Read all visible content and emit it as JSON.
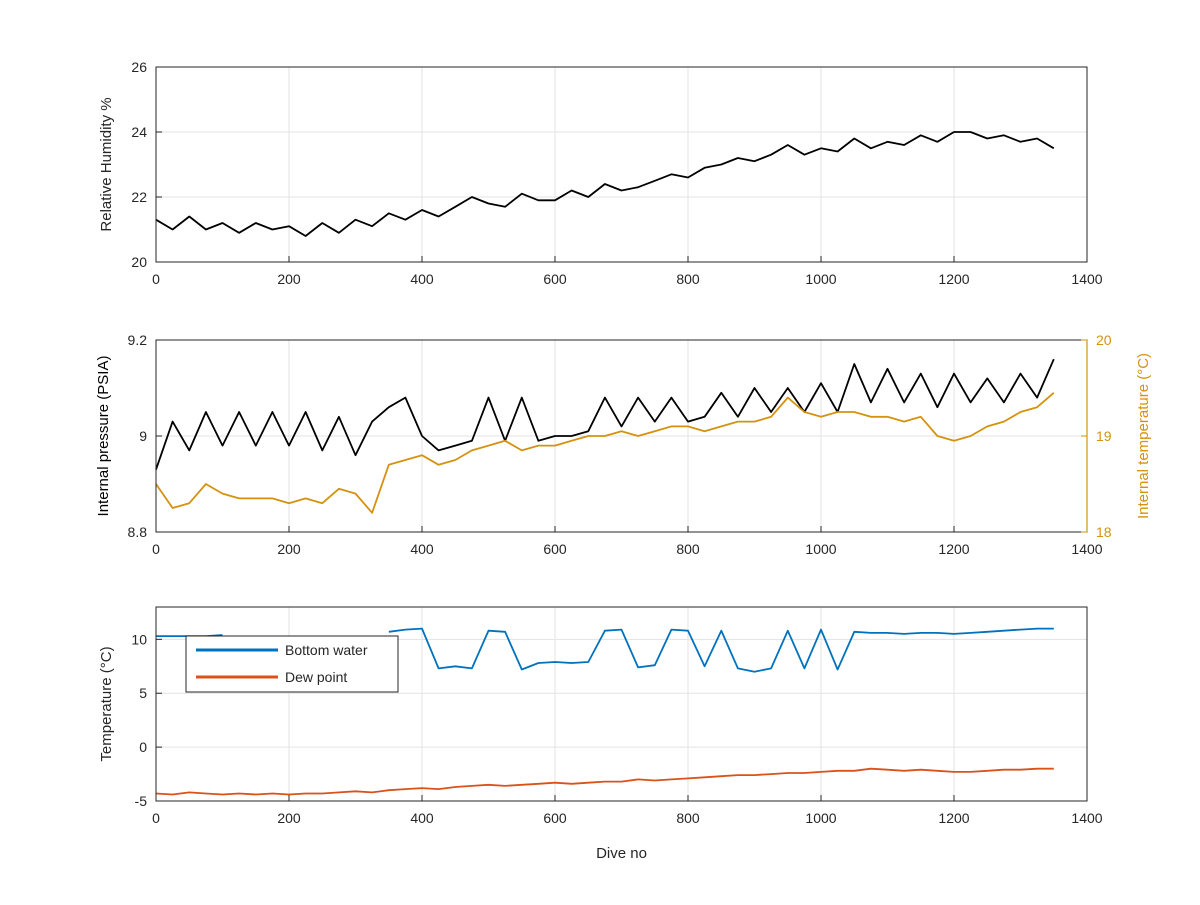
{
  "chart_data": [
    {
      "type": "line",
      "xlabel": "",
      "ylabel": "Relative Humidity %",
      "xlim": [
        0,
        1400
      ],
      "ylim": [
        20,
        26
      ],
      "xticks": [
        0,
        200,
        400,
        600,
        800,
        1000,
        1200,
        1400
      ],
      "yticks": [
        20,
        22,
        24,
        26
      ],
      "grid": true,
      "x_start": 0,
      "x_step": 25,
      "series": [
        {
          "name": "Relative Humidity",
          "axis": "left",
          "color": "#000000",
          "values": [
            21.3,
            21.0,
            21.4,
            21.0,
            21.2,
            20.9,
            21.2,
            21.0,
            21.1,
            20.8,
            21.2,
            20.9,
            21.3,
            21.1,
            21.5,
            21.3,
            21.6,
            21.4,
            21.7,
            22.0,
            21.8,
            21.7,
            22.1,
            21.9,
            21.9,
            22.2,
            22.0,
            22.4,
            22.2,
            22.3,
            22.5,
            22.7,
            22.6,
            22.9,
            23.0,
            23.2,
            23.1,
            23.3,
            23.6,
            23.3,
            23.5,
            23.4,
            23.8,
            23.5,
            23.7,
            23.6,
            23.9,
            23.7,
            24.0,
            24.0,
            23.8,
            23.9,
            23.7,
            23.8,
            23.5
          ]
        }
      ]
    },
    {
      "type": "line",
      "xlabel": "",
      "ylabel": "Internal pressure (PSIA)",
      "ylabel_right": "Internal temperature (°C)",
      "xlim": [
        0,
        1400
      ],
      "ylim": [
        8.8,
        9.2
      ],
      "ylim_right": [
        18,
        20
      ],
      "xticks": [
        0,
        200,
        400,
        600,
        800,
        1000,
        1200,
        1400
      ],
      "yticks": [
        8.8,
        9,
        9.2
      ],
      "yticks_right": [
        18,
        19,
        20
      ],
      "grid": true,
      "x_start": 0,
      "x_step": 25,
      "series": [
        {
          "name": "Internal pressure",
          "axis": "left",
          "color": "#000000",
          "values": [
            8.93,
            9.03,
            8.97,
            9.05,
            8.98,
            9.05,
            8.98,
            9.05,
            8.98,
            9.05,
            8.97,
            9.04,
            8.96,
            9.03,
            9.06,
            9.08,
            9.0,
            8.97,
            8.98,
            8.99,
            9.08,
            8.99,
            9.08,
            8.99,
            9.0,
            9.0,
            9.01,
            9.08,
            9.02,
            9.08,
            9.03,
            9.08,
            9.03,
            9.04,
            9.09,
            9.04,
            9.1,
            9.05,
            9.1,
            9.05,
            9.11,
            9.05,
            9.15,
            9.07,
            9.14,
            9.07,
            9.13,
            9.06,
            9.13,
            9.07,
            9.12,
            9.07,
            9.13,
            9.08,
            9.16
          ]
        },
        {
          "name": "Internal temperature",
          "axis": "right",
          "color": "#D4920F",
          "values": [
            18.5,
            18.25,
            18.3,
            18.5,
            18.4,
            18.35,
            18.35,
            18.35,
            18.3,
            18.35,
            18.3,
            18.45,
            18.4,
            18.2,
            18.7,
            18.75,
            18.8,
            18.7,
            18.75,
            18.85,
            18.9,
            18.95,
            18.85,
            18.9,
            18.9,
            18.95,
            19.0,
            19.0,
            19.05,
            19.0,
            19.05,
            19.1,
            19.1,
            19.05,
            19.1,
            19.15,
            19.15,
            19.2,
            19.4,
            19.25,
            19.2,
            19.25,
            19.25,
            19.2,
            19.2,
            19.15,
            19.2,
            19.0,
            18.95,
            19.0,
            19.1,
            19.15,
            19.25,
            19.3,
            19.45
          ]
        }
      ]
    },
    {
      "type": "line",
      "xlabel": "Dive no",
      "ylabel": "Temperature (°C)",
      "xlim": [
        0,
        1400
      ],
      "ylim": [
        -5,
        13
      ],
      "xticks": [
        0,
        200,
        400,
        600,
        800,
        1000,
        1200,
        1400
      ],
      "yticks": [
        -5,
        0,
        5,
        10
      ],
      "grid": true,
      "legend": "top-left",
      "x_start": 0,
      "x_step": 25,
      "series": [
        {
          "name": "Bottom water",
          "axis": "left",
          "color": "#0072BD",
          "values": [
            10.3,
            10.3,
            10.3,
            10.3,
            10.4,
            null,
            null,
            null,
            null,
            null,
            null,
            null,
            null,
            null,
            10.7,
            10.9,
            11.0,
            7.3,
            7.5,
            7.3,
            10.8,
            10.7,
            7.2,
            7.8,
            7.9,
            7.8,
            7.9,
            10.8,
            10.9,
            7.4,
            7.6,
            10.9,
            10.8,
            7.5,
            10.8,
            7.3,
            7.0,
            7.3,
            10.8,
            7.3,
            10.9,
            7.2,
            10.7,
            10.6,
            10.6,
            10.5,
            10.6,
            10.6,
            10.5,
            10.6,
            10.7,
            10.8,
            10.9,
            11.0,
            11.0
          ]
        },
        {
          "name": "Dew point",
          "axis": "left",
          "color": "#D95319",
          "values": [
            -4.3,
            -4.4,
            -4.2,
            -4.3,
            -4.4,
            -4.3,
            -4.4,
            -4.3,
            -4.4,
            -4.3,
            -4.3,
            -4.2,
            -4.1,
            -4.2,
            -4.0,
            -3.9,
            -3.8,
            -3.9,
            -3.7,
            -3.6,
            -3.5,
            -3.6,
            -3.5,
            -3.4,
            -3.3,
            -3.4,
            -3.3,
            -3.2,
            -3.2,
            -3.0,
            -3.1,
            -3.0,
            -2.9,
            -2.8,
            -2.7,
            -2.6,
            -2.6,
            -2.5,
            -2.4,
            -2.4,
            -2.3,
            -2.2,
            -2.2,
            -2.0,
            -2.1,
            -2.2,
            -2.1,
            -2.2,
            -2.3,
            -2.3,
            -2.2,
            -2.1,
            -2.1,
            -2.0,
            -2.0
          ]
        }
      ]
    }
  ]
}
